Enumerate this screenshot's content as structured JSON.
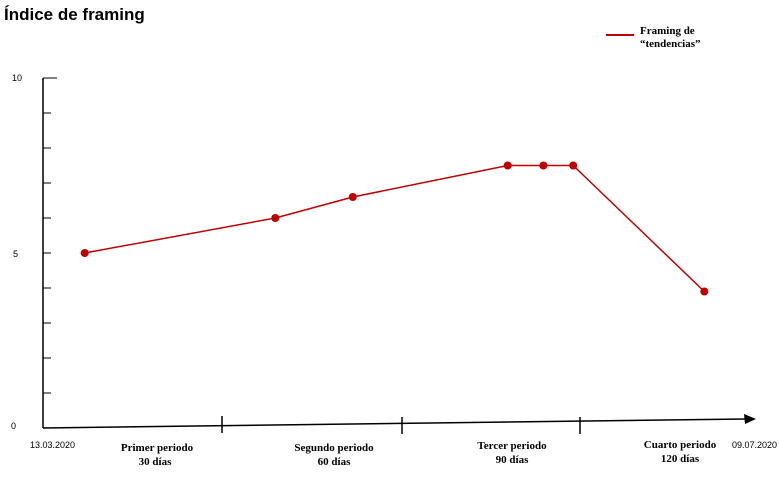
{
  "chart_data": {
    "type": "line",
    "title": "Índice de framing",
    "ylim": [
      0,
      10
    ],
    "y_ticks": [
      "0",
      "5",
      "10"
    ],
    "x_start_label": "13.03.2020",
    "x_end_label": "09.07.2020",
    "periods": [
      {
        "line1": "Primer periodo",
        "line2": "30 días"
      },
      {
        "line1": "Segundo periodo",
        "line2": "60 días"
      },
      {
        "line1": "Tercer periodo",
        "line2": "90 días"
      },
      {
        "line1": "Cuarto periodo",
        "line2": "120 días"
      }
    ],
    "legend": {
      "line1": "Framing de",
      "line2": "“tendencias”",
      "position": "top-right"
    },
    "series": [
      {
        "name": "Framing de “tendencias”",
        "color": "#c00000",
        "x": [
          "2020-03-20",
          "2020-04-21",
          "2020-05-04",
          "2020-05-30",
          "2020-06-05",
          "2020-06-10",
          "2020-07-02"
        ],
        "values": [
          5.0,
          6.0,
          6.6,
          7.5,
          7.5,
          7.5,
          3.9
        ]
      }
    ]
  }
}
